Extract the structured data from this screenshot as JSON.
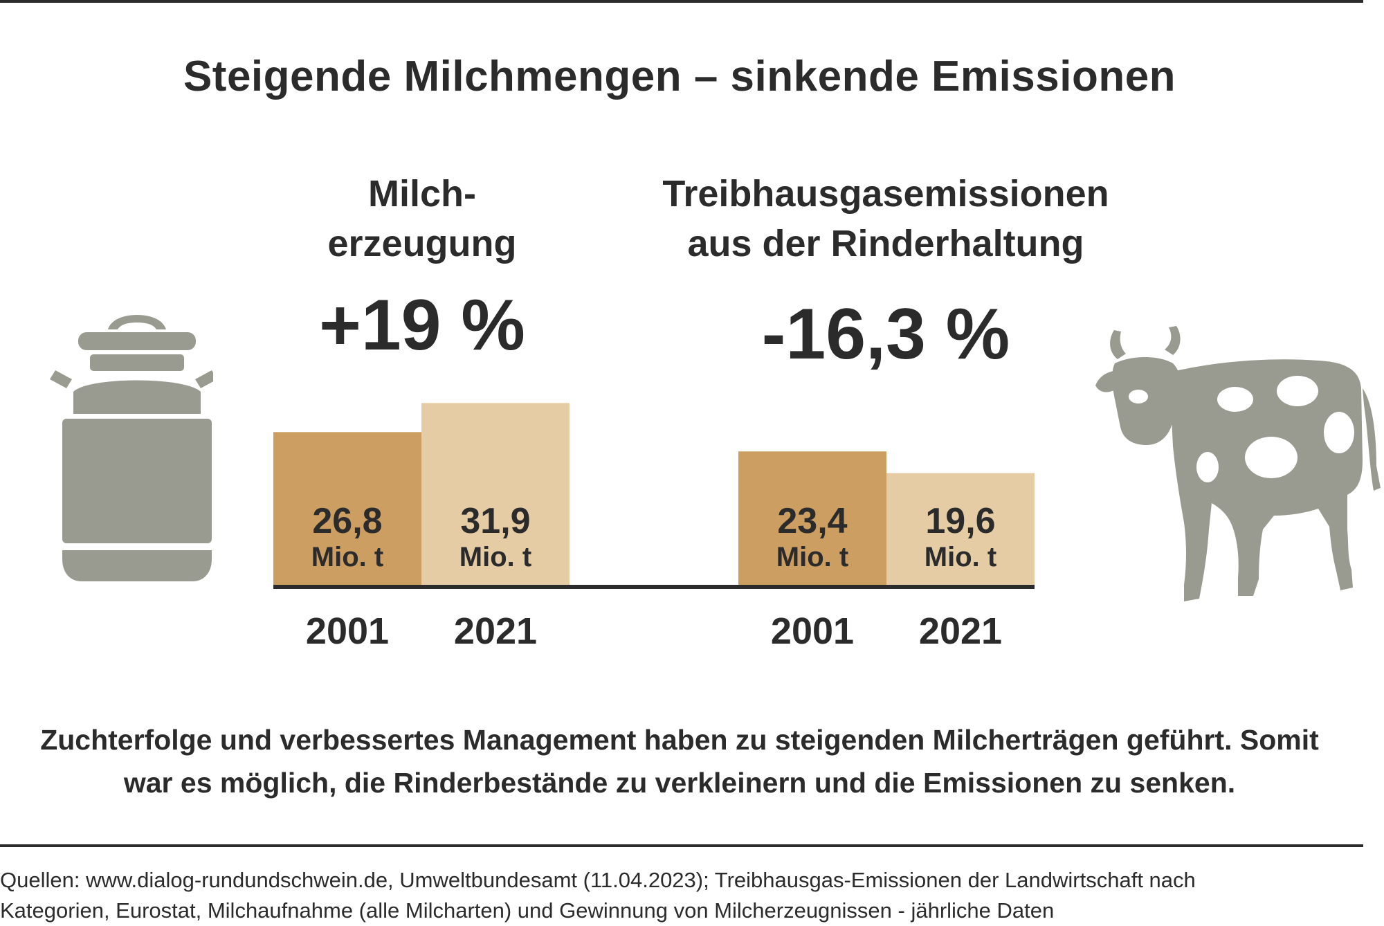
{
  "title": "Steigende Milchmengen – sinkende Emissionen",
  "colors": {
    "bar_2001": "#cc9e62",
    "bar_2021": "#e6cca4",
    "baseline": "#2b2b2b",
    "icon": "#9a9b90",
    "text": "#2b2b2b"
  },
  "icons": [
    "milk-can-icon",
    "cow-icon"
  ],
  "chart_data": [
    {
      "type": "bar",
      "title_lines": [
        "Milch-",
        "erzeugung"
      ],
      "change": "+19 %",
      "categories": [
        "2001",
        "2021"
      ],
      "values": [
        26.8,
        31.9
      ],
      "value_labels": [
        "26,8",
        "31,9"
      ],
      "unit": "Mio. t"
    },
    {
      "type": "bar",
      "title_lines": [
        "Treibhausgasemissionen",
        "aus der Rinderhaltung"
      ],
      "change": "-16,3 %",
      "categories": [
        "2001",
        "2021"
      ],
      "values": [
        23.4,
        19.6
      ],
      "value_labels": [
        "23,4",
        "19,6"
      ],
      "unit": "Mio. t"
    }
  ],
  "caption": [
    "Zuchterfolge und verbessertes Management haben zu steigenden Milcherträgen geführt. Somit",
    "war es möglich, die Rinderbestände zu verkleinern und die Emissionen zu senken."
  ],
  "sources": [
    "Quellen: www.dialog-rundundschwein.de, Umweltbundesamt (11.04.2023); Treibhausgas-Emissionen der Landwirtschaft nach",
    "Kategorien, Eurostat, Milchaufnahme (alle Milcharten) und Gewinnung von Milcherzeugnissen - jährliche Daten"
  ]
}
